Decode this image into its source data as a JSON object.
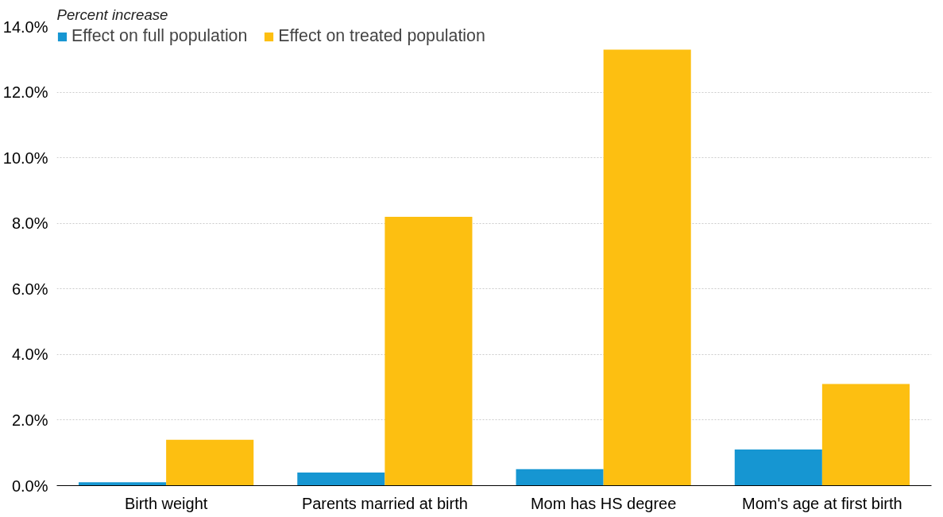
{
  "chart_data": {
    "type": "bar",
    "ylabel": "Percent increase",
    "categories": [
      "Birth weight",
      "Parents married at birth",
      "Mom has HS degree",
      "Mom's age at first birth"
    ],
    "series": [
      {
        "name": "Effect on full population",
        "color": "#1696d2",
        "values": [
          0.1,
          0.4,
          0.5,
          1.1
        ]
      },
      {
        "name": "Effect on treated population",
        "color": "#fdbf11",
        "values": [
          1.4,
          8.2,
          13.3,
          3.1
        ]
      }
    ],
    "ylim": [
      0,
      14
    ],
    "yticks": [
      {
        "value": 0,
        "label": "0.0%"
      },
      {
        "value": 2,
        "label": "2.0%"
      },
      {
        "value": 4,
        "label": "4.0%"
      },
      {
        "value": 6,
        "label": "6.0%"
      },
      {
        "value": 8,
        "label": "8.0%"
      },
      {
        "value": 10,
        "label": "10.0%"
      },
      {
        "value": 12,
        "label": "12.0%"
      },
      {
        "value": 14,
        "label": "14.0%"
      }
    ],
    "grid": "y",
    "legend": "top left"
  }
}
